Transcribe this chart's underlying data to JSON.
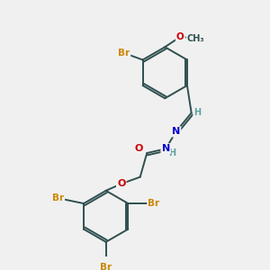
{
  "bg_color": "#f0f0f0",
  "bond_color": "#2f4f4f",
  "atom_colors": {
    "Br": "#cc8800",
    "O": "#cc0000",
    "N": "#0000cc",
    "C": "#2f4f4f",
    "H": "#5f9f9f"
  },
  "title": "",
  "figsize": [
    3.0,
    3.0
  ],
  "dpi": 100
}
